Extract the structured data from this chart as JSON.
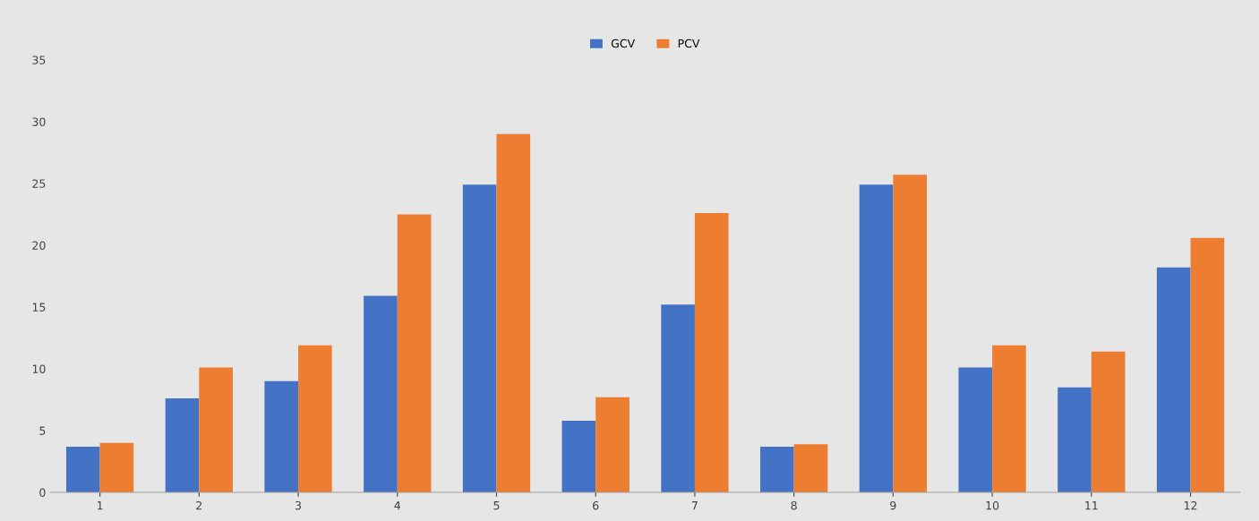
{
  "chart_data": {
    "type": "bar",
    "categories": [
      "1",
      "2",
      "3",
      "4",
      "5",
      "6",
      "7",
      "8",
      "9",
      "10",
      "11",
      "12"
    ],
    "series": [
      {
        "name": "GCV",
        "color": "#4472c4",
        "values": [
          3.7,
          7.6,
          9.0,
          15.9,
          24.9,
          5.8,
          15.2,
          3.7,
          24.9,
          10.1,
          8.5,
          18.2
        ]
      },
      {
        "name": "PCV",
        "color": "#ed7d31",
        "values": [
          4.0,
          10.1,
          11.9,
          22.5,
          29.0,
          7.7,
          22.6,
          3.9,
          25.7,
          11.9,
          11.4,
          20.6
        ]
      }
    ],
    "ylim": [
      0,
      35
    ],
    "yticks": [
      0,
      5,
      10,
      15,
      20,
      25,
      30,
      35
    ],
    "grid": false,
    "legend": "top"
  }
}
